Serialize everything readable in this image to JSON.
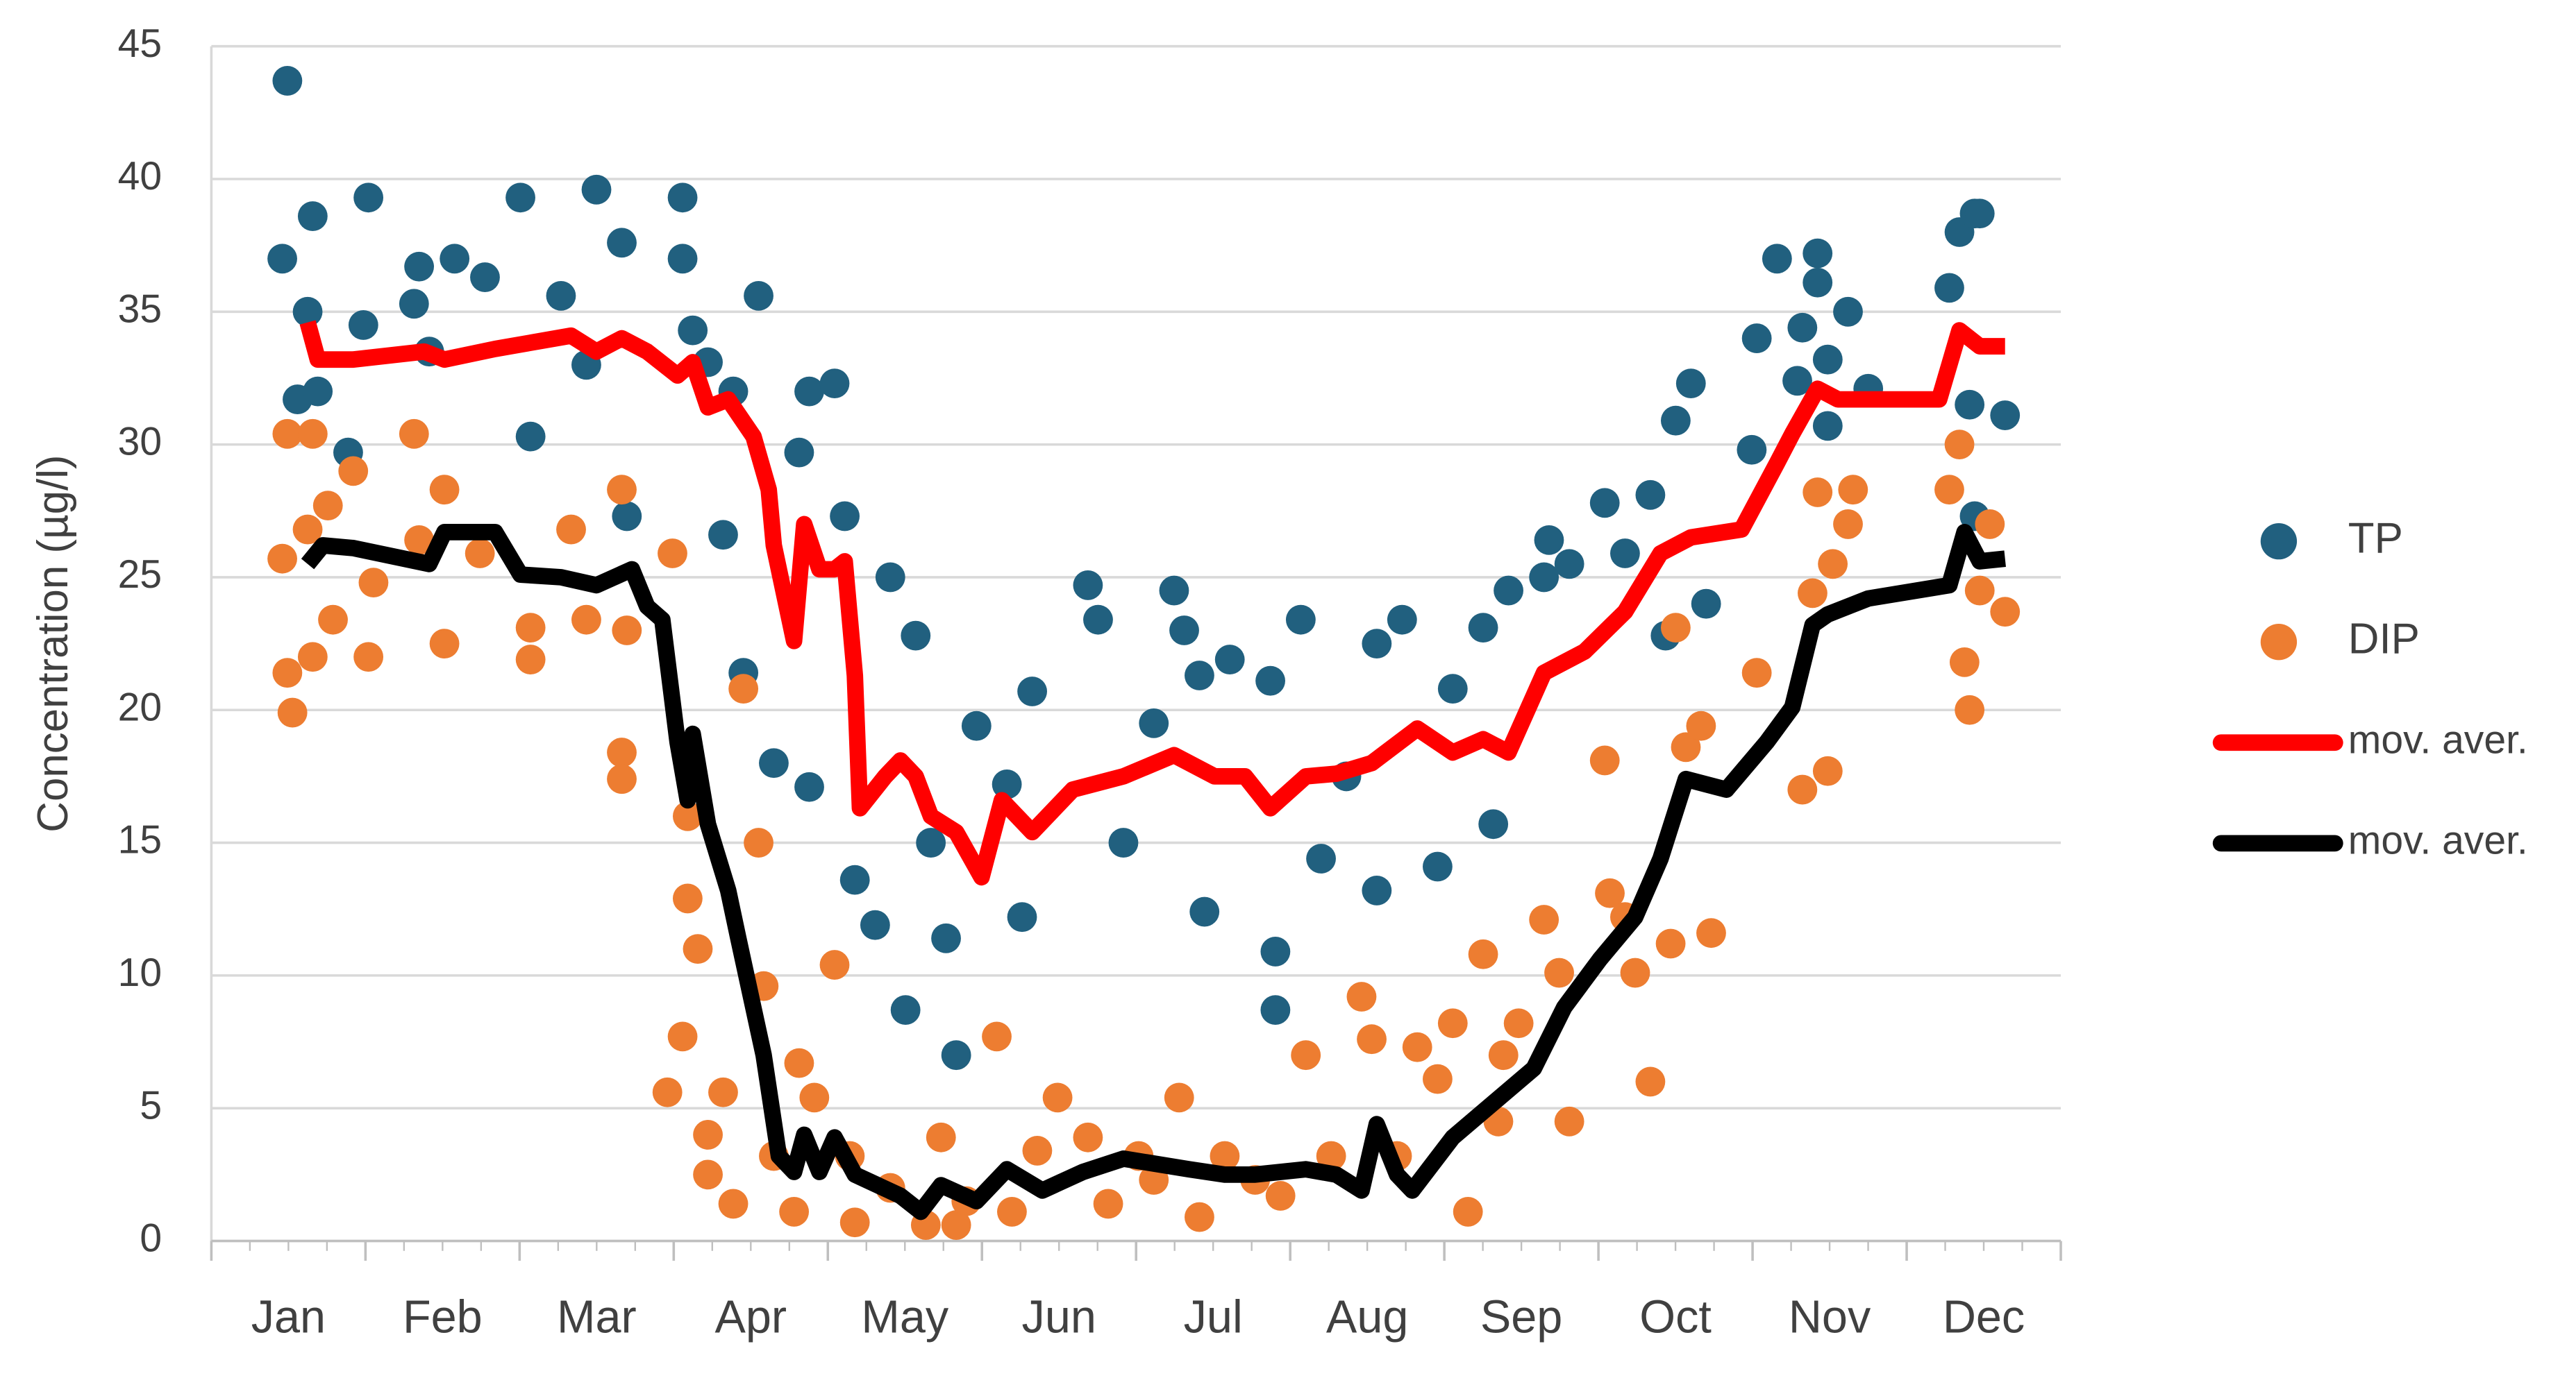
{
  "chart_data": {
    "type": "scatter",
    "y_label": "Concentration (µg/l)",
    "categories": [
      "Jan",
      "Feb",
      "Mar",
      "Apr",
      "May",
      "Jun",
      "Jul",
      "Aug",
      "Sep",
      "Oct",
      "Nov",
      "Dec"
    ],
    "xlim": [
      0,
      365
    ],
    "ylim": [
      0,
      45
    ],
    "yticks": [
      0,
      5,
      10,
      15,
      20,
      25,
      30,
      35,
      40,
      45
    ],
    "grid": true,
    "legend": "right",
    "series": [
      {
        "name": "TP",
        "type": "scatter",
        "color": "#21607f",
        "x": [
          14,
          15,
          20,
          19,
          17,
          21,
          27,
          31,
          30,
          40,
          41,
          43,
          48,
          54,
          61,
          63,
          69,
          76,
          81,
          74,
          82,
          93,
          93,
          95,
          98,
          108,
          103,
          101,
          105,
          111,
          116,
          118,
          123,
          125,
          118,
          127,
          131,
          134,
          137,
          139,
          142,
          145,
          147,
          151,
          157,
          160,
          162,
          173,
          175,
          180,
          186,
          190,
          192,
          195,
          196,
          201,
          209,
          210,
          210,
          215,
          219,
          224,
          230,
          230,
          235,
          242,
          245,
          251,
          253,
          256,
          263,
          264,
          268,
          275,
          279,
          284,
          289,
          292,
          295,
          287,
          304,
          305,
          309,
          313,
          314,
          317,
          317,
          319,
          319,
          323,
          327,
          343,
          345,
          348,
          349,
          347,
          354,
          348
        ],
        "values": [
          37,
          43.7,
          38.6,
          35,
          31.7,
          32,
          29.7,
          39.3,
          34.5,
          35.3,
          36.7,
          33.5,
          37,
          36.3,
          39.3,
          30.3,
          35.6,
          39.6,
          37.6,
          33,
          27.3,
          39.3,
          37,
          34.3,
          33.1,
          35.6,
          32,
          26.6,
          21.4,
          18,
          29.7,
          32,
          32.3,
          27.3,
          17.1,
          13.6,
          11.9,
          25,
          8.7,
          22.8,
          15,
          11.4,
          7,
          19.4,
          17.2,
          12.2,
          20.7,
          24.7,
          23.4,
          15,
          19.5,
          24.5,
          23,
          21.3,
          12.4,
          21.9,
          21.1,
          10.9,
          8.7,
          23.4,
          14.4,
          17.5,
          22.5,
          13.2,
          23.4,
          14.1,
          20.8,
          23.1,
          15.7,
          24.5,
          25,
          26.4,
          25.5,
          27.8,
          25.9,
          28.1,
          30.9,
          32.3,
          24,
          22.8,
          29.8,
          34,
          37,
          32.4,
          34.4,
          37.2,
          36.1,
          33.2,
          30.7,
          35,
          32.1,
          35.9,
          38,
          38.7,
          38.7,
          31.5,
          31.1,
          27.3
        ]
      },
      {
        "name": "DIP",
        "type": "scatter",
        "color": "#ed7d31",
        "x": [
          14,
          15,
          16,
          15,
          19,
          20,
          20,
          23,
          24,
          28,
          31,
          32,
          40,
          41,
          46,
          46,
          53,
          63,
          63,
          71,
          74,
          81,
          81,
          81,
          82,
          90,
          91,
          93,
          94,
          94,
          96,
          98,
          98,
          101,
          103,
          105,
          108,
          109,
          111,
          115,
          116,
          119,
          123,
          126,
          127,
          134,
          141,
          144,
          147,
          149,
          155,
          158,
          163,
          167,
          173,
          177,
          183,
          186,
          191,
          195,
          200,
          206,
          211,
          216,
          221,
          227,
          229,
          234,
          238,
          242,
          245,
          248,
          251,
          254,
          255,
          258,
          263,
          266,
          268,
          275,
          276,
          279,
          281,
          284,
          288,
          291,
          294,
          296,
          289,
          305,
          314,
          316,
          317,
          319,
          323,
          324,
          320,
          343,
          345,
          346,
          347,
          349,
          351,
          354
        ],
        "values": [
          25.7,
          30.4,
          19.9,
          21.4,
          26.8,
          30.4,
          22,
          27.7,
          23.4,
          29,
          22,
          24.8,
          30.4,
          26.4,
          22.5,
          28.3,
          25.9,
          23.1,
          21.9,
          26.8,
          23.4,
          28.3,
          18.4,
          17.4,
          23,
          5.6,
          25.9,
          7.7,
          16,
          12.9,
          11,
          4,
          2.5,
          5.6,
          1.4,
          20.8,
          15,
          9.6,
          3.2,
          1.1,
          6.7,
          5.4,
          10.4,
          3.2,
          0.7,
          2,
          0.6,
          3.9,
          0.6,
          1.5,
          7.7,
          1.1,
          3.4,
          5.4,
          3.9,
          1.4,
          3.2,
          2.3,
          5.4,
          0.9,
          3.2,
          2.3,
          1.7,
          7,
          3.2,
          9.2,
          7.6,
          3.2,
          7.3,
          6.1,
          8.2,
          1.1,
          10.8,
          4.5,
          7,
          8.2,
          12.1,
          10.1,
          4.5,
          18.1,
          13.1,
          12.2,
          10.1,
          6,
          11.2,
          18.6,
          19.4,
          11.6,
          23.1,
          21.4,
          17,
          24.4,
          28.2,
          17.7,
          27,
          28.3,
          25.5,
          28.3,
          30,
          21.8,
          20,
          24.5,
          27,
          23.7
        ]
      },
      {
        "name": "mov. aver.",
        "type": "line",
        "color": "#ff0000",
        "x": [
          19,
          21,
          28,
          42,
          46,
          56,
          71,
          76,
          81,
          86,
          92,
          95,
          98,
          102,
          107,
          110,
          111,
          115,
          117,
          120,
          123,
          125,
          127,
          128,
          133,
          136,
          139,
          142,
          147,
          152,
          156,
          162,
          170,
          180,
          190,
          198,
          204,
          209,
          216,
          222,
          229,
          238,
          245,
          251,
          256,
          263,
          271,
          279,
          286,
          292,
          302,
          309,
          312,
          317,
          321,
          341,
          345,
          349,
          354
        ],
        "values": [
          34.6,
          33.2,
          33.2,
          33.5,
          33.2,
          33.6,
          34.1,
          33.5,
          34,
          33.5,
          32.6,
          33.1,
          31.4,
          31.7,
          30.3,
          28.3,
          26.2,
          22.6,
          27,
          25.3,
          25.3,
          25.6,
          21.3,
          16.3,
          17.5,
          18.1,
          17.5,
          16,
          15.4,
          13.7,
          16.6,
          15.4,
          17,
          17.5,
          18.3,
          17.5,
          17.5,
          16.3,
          17.5,
          17.6,
          18,
          19.3,
          18.4,
          18.9,
          18.4,
          21.4,
          22.2,
          23.7,
          25.9,
          26.5,
          26.8,
          29.3,
          30.4,
          32.1,
          31.7,
          31.7,
          34.3,
          33.7,
          33.7
        ]
      },
      {
        "name": "mov. aver.",
        "type": "line",
        "color": "#000000",
        "x": [
          19,
          22,
          28,
          43,
          46,
          56,
          61,
          69,
          76,
          83,
          86,
          89,
          92,
          94,
          95,
          98,
          102,
          104,
          109,
          112,
          115,
          117,
          120,
          123,
          127,
          136,
          140,
          144,
          151,
          157,
          164,
          172,
          180,
          193,
          200,
          206,
          216,
          222,
          227,
          230,
          234,
          237,
          245,
          253,
          261,
          267,
          274,
          281,
          286,
          291,
          299,
          307,
          312,
          316,
          319,
          327,
          343,
          346,
          349,
          354
        ],
        "values": [
          25.5,
          26.2,
          26.1,
          25.5,
          26.7,
          26.7,
          25.1,
          25,
          24.7,
          25.3,
          23.9,
          23.4,
          18.8,
          16.6,
          19.1,
          15.7,
          13.2,
          11.4,
          7,
          3.2,
          2.6,
          4,
          2.6,
          3.9,
          2.5,
          1.7,
          1.1,
          2.1,
          1.5,
          2.7,
          1.9,
          2.6,
          3.1,
          2.7,
          2.5,
          2.5,
          2.7,
          2.5,
          1.9,
          4.4,
          2.5,
          1.9,
          3.9,
          5.2,
          6.5,
          8.8,
          10.6,
          12.2,
          14.4,
          17.4,
          17,
          18.8,
          20.1,
          23.2,
          23.6,
          24.2,
          24.7,
          26.7,
          25.6,
          25.7
        ]
      }
    ]
  }
}
